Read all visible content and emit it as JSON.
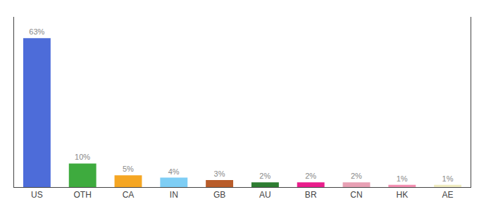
{
  "chart_data": {
    "type": "bar",
    "categories": [
      "US",
      "OTH",
      "CA",
      "IN",
      "GB",
      "AU",
      "BR",
      "CN",
      "HK",
      "AE"
    ],
    "values": [
      63,
      10,
      5,
      4,
      3,
      2,
      2,
      2,
      1,
      1
    ],
    "value_labels": [
      "63%",
      "10%",
      "5%",
      "4%",
      "3%",
      "2%",
      "2%",
      "2%",
      "1%",
      "1%"
    ],
    "colors": [
      "#4d6cd9",
      "#3eab3e",
      "#f5a623",
      "#7ecef5",
      "#b85c2a",
      "#2e7d32",
      "#e91e8c",
      "#e8a0b4",
      "#f48fb1",
      "#f0ecc0"
    ],
    "ylim": [
      0,
      72
    ],
    "data_labels": true,
    "tick_labels": "x",
    "grid": false
  }
}
